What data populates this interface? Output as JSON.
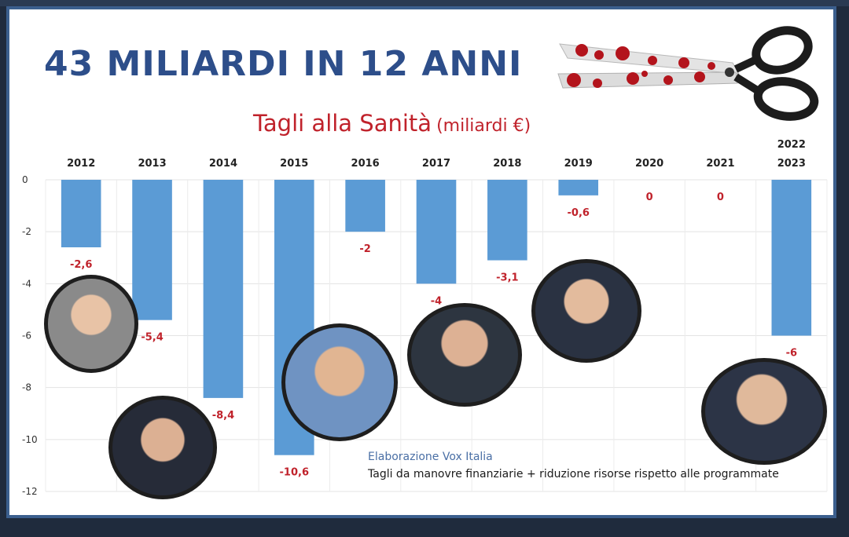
{
  "headline": "43 MILIARDI IN 12 ANNI",
  "subtitle_main": "Tagli alla Sanità",
  "subtitle_unit": "(miliardi €)",
  "note_author": "Elaborazione Vox Italia",
  "note_desc": "Tagli da manovre finanziarie + riduzione risorse rispetto alle programmate",
  "colors": {
    "bar": "#5b9bd5",
    "label": "#c0222b",
    "headline": "#2d4e8a"
  },
  "chart_data": {
    "type": "bar",
    "categories": [
      "2012",
      "2013",
      "2014",
      "2015",
      "2016",
      "2017",
      "2018",
      "2019",
      "2020",
      "2021",
      "2022\n2023"
    ],
    "values": [
      -2.6,
      -5.4,
      -8.4,
      -10.6,
      -2,
      -4,
      -3.1,
      -0.6,
      0,
      0,
      -6
    ],
    "data_labels": [
      "-2,6",
      "-5,4",
      "-8,4",
      "-10,6",
      "-2",
      "-4",
      "-3,1",
      "-0,6",
      "0",
      "0",
      "-6"
    ],
    "yticks": [
      0,
      -2,
      -4,
      -6,
      -8,
      -10,
      -12
    ],
    "ylim": [
      -12,
      0
    ],
    "title": "Tagli alla Sanità",
    "ylabel": "",
    "xlabel": "",
    "grid": true,
    "x_axis_position": "top"
  }
}
